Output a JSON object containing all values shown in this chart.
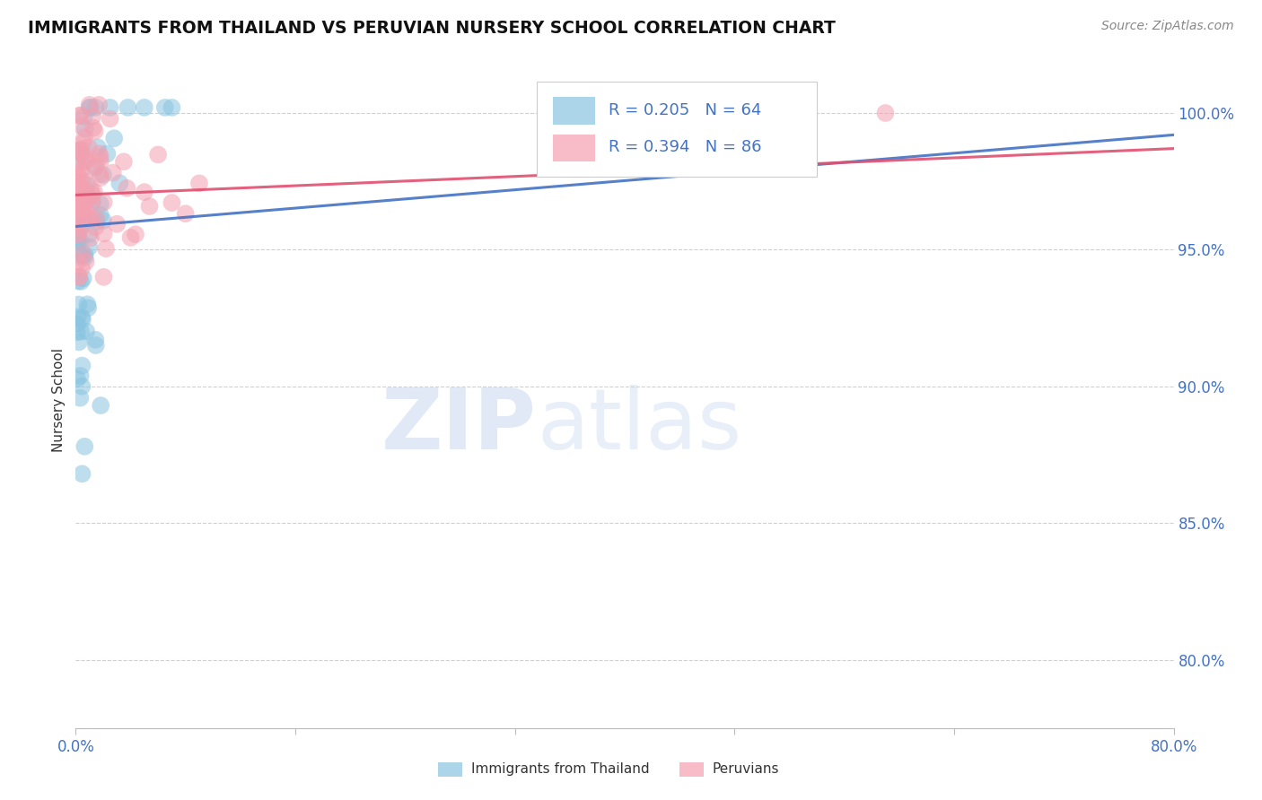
{
  "title": "IMMIGRANTS FROM THAILAND VS PERUVIAN NURSERY SCHOOL CORRELATION CHART",
  "source": "Source: ZipAtlas.com",
  "ylabel": "Nursery School",
  "ylabel_right_ticks": [
    "100.0%",
    "95.0%",
    "90.0%",
    "85.0%",
    "80.0%"
  ],
  "ylabel_right_values": [
    1.0,
    0.95,
    0.9,
    0.85,
    0.8
  ],
  "legend_blue_label": "Immigrants from Thailand",
  "legend_pink_label": "Peruvians",
  "R_blue": 0.205,
  "N_blue": 64,
  "R_pink": 0.394,
  "N_pink": 86,
  "blue_color": "#89c4e1",
  "pink_color": "#f4a0b0",
  "blue_line_color": "#4472c4",
  "pink_line_color": "#e05070",
  "background_color": "#ffffff",
  "xmin": 0.0,
  "xmax": 0.8,
  "ymin": 0.775,
  "ymax": 1.015
}
